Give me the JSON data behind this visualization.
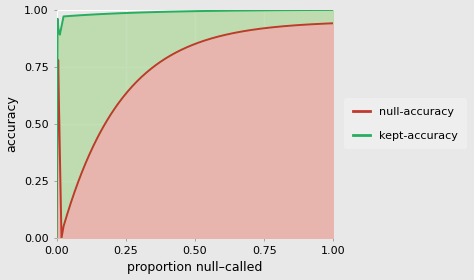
{
  "title": "",
  "xlabel": "proportion null–called",
  "ylabel": "accuracy",
  "xlim": [
    0.0,
    1.0
  ],
  "ylim": [
    0.0,
    1.0
  ],
  "xticks": [
    0.0,
    0.25,
    0.5,
    0.75,
    1.0
  ],
  "yticks": [
    0.0,
    0.25,
    0.5,
    0.75,
    1.0
  ],
  "xtick_labels": [
    "0.00",
    "0.25",
    "0.50",
    "0.75",
    "1.00"
  ],
  "ytick_labels": [
    "0.00",
    "0.25",
    "0.50",
    "0.75",
    "1.00"
  ],
  "null_color": "#c0392b",
  "kept_color": "#27ae60",
  "fill_null_color": "#e8b4ae",
  "fill_kept_color": "#b8dba8",
  "bg_color": "#e8e8e8",
  "plot_bg_color": "#e8e8e8",
  "legend_bg": "#f0f0f0",
  "grid_color": "#ffffff",
  "figsize": [
    4.74,
    2.8
  ],
  "dpi": 100
}
